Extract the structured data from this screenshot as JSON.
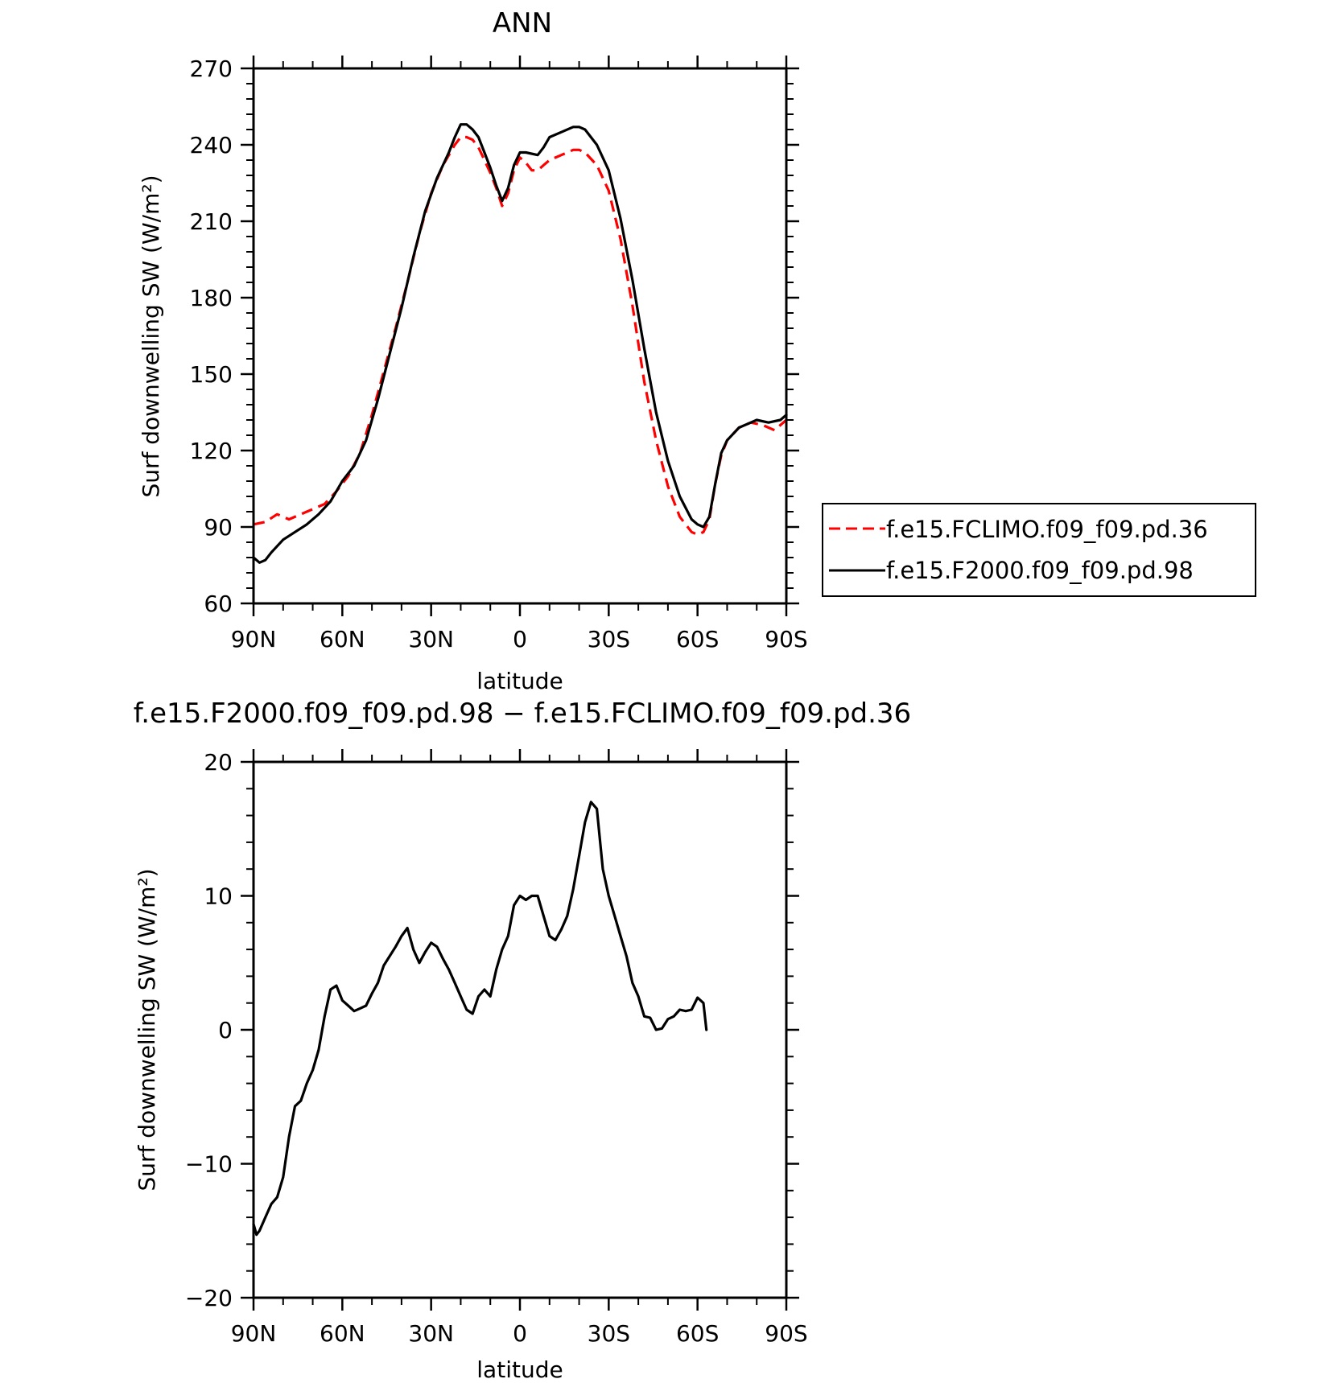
{
  "chart_data": [
    {
      "type": "line",
      "title": "ANN",
      "xlabel": "latitude",
      "ylabel": "Surf downwelling SW (W/m²)",
      "xlim": [
        90,
        -90
      ],
      "ylim": [
        60,
        270
      ],
      "x_tick_values": [
        90,
        60,
        30,
        0,
        -30,
        -60,
        -90
      ],
      "x_tick_labels": [
        "90N",
        "60N",
        "30N",
        "0",
        "30S",
        "60S",
        "90S"
      ],
      "y_ticks": [
        60,
        90,
        120,
        150,
        180,
        210,
        240,
        270
      ],
      "grid": false,
      "legend_position": "right",
      "series": [
        {
          "name": "f.e15.FCLIMO.f09_f09.pd.36",
          "color": "#ff0000",
          "dash": "dashed",
          "points": [
            [
              90,
              91
            ],
            [
              86,
              92
            ],
            [
              82,
              95
            ],
            [
              78,
              93
            ],
            [
              74,
              95
            ],
            [
              70,
              97
            ],
            [
              66,
              99
            ],
            [
              62,
              104
            ],
            [
              58,
              110
            ],
            [
              54,
              119
            ],
            [
              50,
              134
            ],
            [
              46,
              151
            ],
            [
              42,
              168
            ],
            [
              38,
              186
            ],
            [
              34,
              205
            ],
            [
              30,
              221
            ],
            [
              26,
              232
            ],
            [
              22,
              240
            ],
            [
              20,
              243
            ],
            [
              18,
              243
            ],
            [
              16,
              242
            ],
            [
              14,
              239
            ],
            [
              12,
              234
            ],
            [
              10,
              229
            ],
            [
              8,
              223
            ],
            [
              6,
              216
            ],
            [
              4,
              221
            ],
            [
              2,
              230
            ],
            [
              0,
              235
            ],
            [
              -2,
              233
            ],
            [
              -4,
              230
            ],
            [
              -6,
              230
            ],
            [
              -8,
              232
            ],
            [
              -10,
              234
            ],
            [
              -14,
              236
            ],
            [
              -18,
              238
            ],
            [
              -20,
              238
            ],
            [
              -22,
              237
            ],
            [
              -26,
              232
            ],
            [
              -30,
              222
            ],
            [
              -34,
              203
            ],
            [
              -38,
              177
            ],
            [
              -42,
              147
            ],
            [
              -46,
              124
            ],
            [
              -50,
              106
            ],
            [
              -54,
              94
            ],
            [
              -58,
              88
            ],
            [
              -60,
              87
            ],
            [
              -62,
              88
            ],
            [
              -64,
              93
            ],
            [
              -66,
              107
            ],
            [
              -68,
              118
            ],
            [
              -70,
              124
            ],
            [
              -74,
              129
            ],
            [
              -78,
              131
            ],
            [
              -82,
              130
            ],
            [
              -86,
              128
            ],
            [
              -90,
              132
            ]
          ]
        },
        {
          "name": "f.e15.F2000.f09_f09.pd.98",
          "color": "#000000",
          "dash": "solid",
          "points": [
            [
              90,
              78
            ],
            [
              88,
              76
            ],
            [
              86,
              77
            ],
            [
              84,
              80
            ],
            [
              80,
              85
            ],
            [
              76,
              88
            ],
            [
              72,
              91
            ],
            [
              68,
              95
            ],
            [
              64,
              100
            ],
            [
              60,
              108
            ],
            [
              56,
              114
            ],
            [
              52,
              124
            ],
            [
              48,
              140
            ],
            [
              44,
              158
            ],
            [
              40,
              176
            ],
            [
              36,
              196
            ],
            [
              32,
              214
            ],
            [
              28,
              227
            ],
            [
              24,
              237
            ],
            [
              22,
              243
            ],
            [
              20,
              248
            ],
            [
              18,
              248
            ],
            [
              16,
              246
            ],
            [
              14,
              243
            ],
            [
              12,
              237
            ],
            [
              10,
              231
            ],
            [
              8,
              224
            ],
            [
              6,
              218
            ],
            [
              4,
              223
            ],
            [
              2,
              232
            ],
            [
              0,
              237
            ],
            [
              -2,
              237
            ],
            [
              -6,
              236
            ],
            [
              -8,
              239
            ],
            [
              -10,
              243
            ],
            [
              -14,
              245
            ],
            [
              -18,
              247
            ],
            [
              -20,
              247
            ],
            [
              -22,
              246
            ],
            [
              -26,
              240
            ],
            [
              -30,
              230
            ],
            [
              -34,
              211
            ],
            [
              -38,
              187
            ],
            [
              -42,
              160
            ],
            [
              -46,
              135
            ],
            [
              -50,
              116
            ],
            [
              -54,
              102
            ],
            [
              -58,
              93
            ],
            [
              -60,
              91
            ],
            [
              -62,
              90
            ],
            [
              -64,
              94
            ],
            [
              -66,
              107
            ],
            [
              -68,
              119
            ],
            [
              -70,
              124
            ],
            [
              -74,
              129
            ],
            [
              -78,
              131
            ],
            [
              -80,
              132
            ],
            [
              -84,
              131
            ],
            [
              -88,
              132
            ],
            [
              -90,
              134
            ]
          ]
        }
      ]
    },
    {
      "type": "line",
      "title": "f.e15.F2000.f09_f09.pd.98 − f.e15.FCLIMO.f09_f09.pd.36",
      "xlabel": "latitude",
      "ylabel": "Surf downwelling SW (W/m²)",
      "xlim": [
        90,
        -90
      ],
      "ylim": [
        -20,
        20
      ],
      "x_tick_values": [
        90,
        60,
        30,
        0,
        -30,
        -60,
        -90
      ],
      "x_tick_labels": [
        "90N",
        "60N",
        "30N",
        "0",
        "30S",
        "60S",
        "90S"
      ],
      "y_ticks": [
        -20,
        -10,
        0,
        10,
        20
      ],
      "y_tick_labels": [
        "−20",
        "−10",
        "0",
        "10",
        "20"
      ],
      "grid": false,
      "series": [
        {
          "color": "#000000",
          "dash": "solid",
          "points": [
            [
              90,
              -14.5
            ],
            [
              89,
              -15.3
            ],
            [
              88,
              -15
            ],
            [
              86,
              -14
            ],
            [
              84,
              -13
            ],
            [
              82,
              -12.5
            ],
            [
              80,
              -11
            ],
            [
              78,
              -8
            ],
            [
              76,
              -5.7
            ],
            [
              74,
              -5.3
            ],
            [
              72,
              -4
            ],
            [
              70,
              -3
            ],
            [
              68,
              -1.5
            ],
            [
              66,
              1
            ],
            [
              64,
              3
            ],
            [
              62,
              3.3
            ],
            [
              60,
              2.2
            ],
            [
              58,
              1.8
            ],
            [
              56,
              1.4
            ],
            [
              54,
              1.6
            ],
            [
              52,
              1.8
            ],
            [
              50,
              2.7
            ],
            [
              48,
              3.5
            ],
            [
              46,
              4.8
            ],
            [
              44,
              5.5
            ],
            [
              42,
              6.2
            ],
            [
              40,
              7
            ],
            [
              38,
              7.6
            ],
            [
              36,
              6
            ],
            [
              34,
              5
            ],
            [
              32,
              5.8
            ],
            [
              30,
              6.5
            ],
            [
              28,
              6.2
            ],
            [
              26,
              5.3
            ],
            [
              24,
              4.5
            ],
            [
              22,
              3.5
            ],
            [
              20,
              2.5
            ],
            [
              18,
              1.5
            ],
            [
              16,
              1.2
            ],
            [
              14,
              2.5
            ],
            [
              12,
              3
            ],
            [
              10,
              2.5
            ],
            [
              8,
              4.5
            ],
            [
              6,
              6
            ],
            [
              4,
              7
            ],
            [
              2,
              9.3
            ],
            [
              0,
              10
            ],
            [
              -2,
              9.7
            ],
            [
              -4,
              10
            ],
            [
              -6,
              10
            ],
            [
              -8,
              8.5
            ],
            [
              -10,
              7
            ],
            [
              -12,
              6.7
            ],
            [
              -14,
              7.5
            ],
            [
              -16,
              8.5
            ],
            [
              -18,
              10.5
            ],
            [
              -20,
              13
            ],
            [
              -22,
              15.5
            ],
            [
              -24,
              17
            ],
            [
              -26,
              16.5
            ],
            [
              -28,
              12
            ],
            [
              -30,
              10
            ],
            [
              -32,
              8.5
            ],
            [
              -34,
              7
            ],
            [
              -36,
              5.5
            ],
            [
              -38,
              3.5
            ],
            [
              -40,
              2.5
            ],
            [
              -42,
              1
            ],
            [
              -44,
              0.9
            ],
            [
              -46,
              0
            ],
            [
              -48,
              0.1
            ],
            [
              -50,
              0.8
            ],
            [
              -52,
              1
            ],
            [
              -54,
              1.5
            ],
            [
              -56,
              1.4
            ],
            [
              -58,
              1.5
            ],
            [
              -60,
              2.4
            ],
            [
              -62,
              2
            ],
            [
              -63,
              0
            ]
          ]
        }
      ]
    }
  ]
}
